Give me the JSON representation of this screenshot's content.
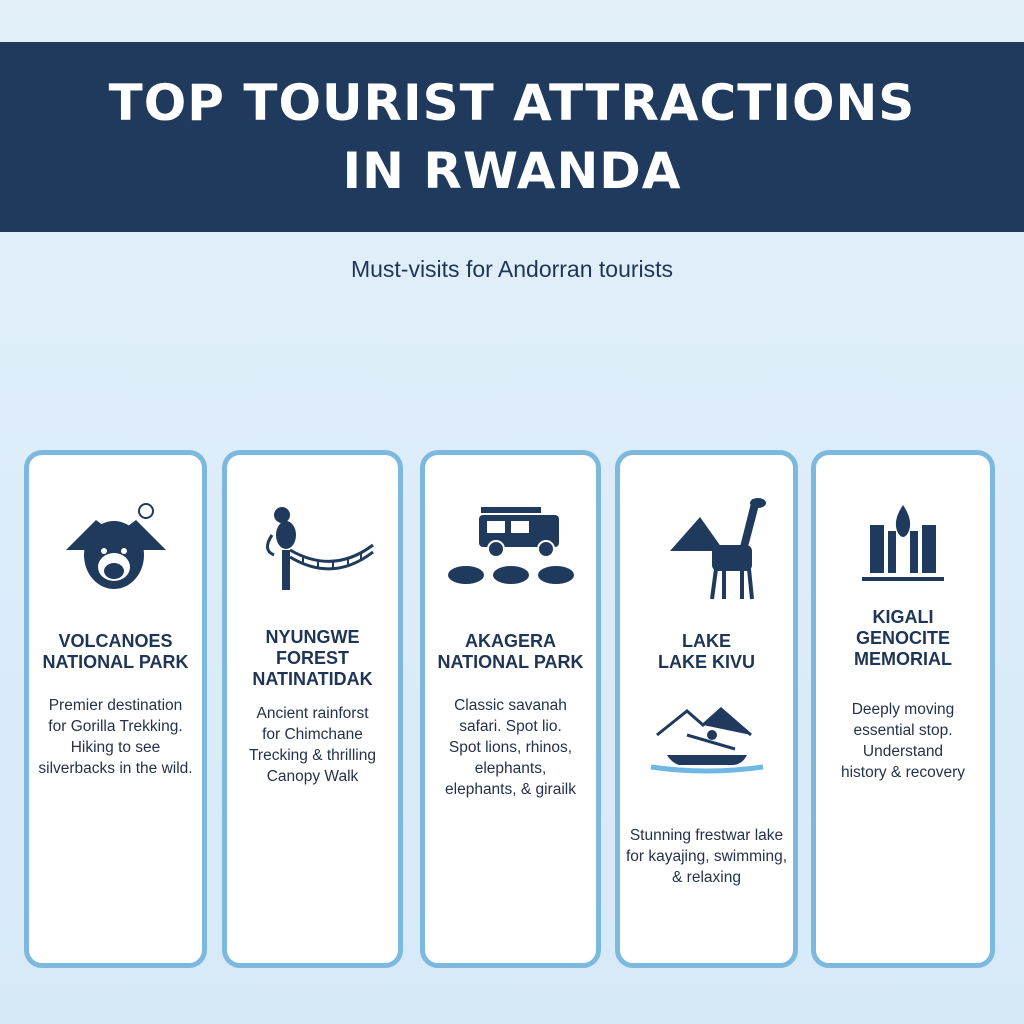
{
  "header": {
    "title_line1": "TOP TOURIST ATTRACTIONS",
    "title_line2": "IN RWANDA"
  },
  "subtitle": "Must-visits for Andorran tourists",
  "colors": {
    "header": "#1f3a5c",
    "card_border": "#7db9df",
    "background": "#dcecf8",
    "icon": "#1f3a5c"
  },
  "cards": [
    {
      "icon": "gorilla-icon",
      "title": [
        "VOLCANOES",
        "NATIONAL PARK"
      ],
      "desc": [
        "Premier destination",
        "for Gorilla Trekking.",
        "Hiking to see",
        "silverbacks in the wild."
      ]
    },
    {
      "icon": "monkey-canopy-bridge-icon",
      "title": [
        "NYUNGWE",
        "FOREST",
        "NATINATIDAK"
      ],
      "desc": [
        "Ancient rainforst",
        "for Chimchane",
        "Trecking & thrilling",
        "Canopy Walk"
      ]
    },
    {
      "icon": "safari-jeep-animals-icon",
      "title": [
        "AKAGERA",
        "NATIONAL PARK"
      ],
      "desc": [
        "Classic savanah",
        "safari. Spot lio.",
        "Spot lions, rhinos,",
        "elephants,",
        "elephants, & girailk"
      ]
    },
    {
      "icon": "giraffe-mountain-icon",
      "icon2": "kayak-icon",
      "title": [
        "LAKE",
        "LAKE KIVU"
      ],
      "desc": [
        "Stunning frestwar lake",
        "for kayajing, swimming,",
        "& relaxing"
      ]
    },
    {
      "icon": "memorial-flame-icon",
      "title": [
        "KIGALI",
        "GENOCITE",
        "MEMORIAL"
      ],
      "desc": [
        "Deeply moving",
        "essential stop.",
        "Understand",
        "history & recovery"
      ]
    }
  ]
}
